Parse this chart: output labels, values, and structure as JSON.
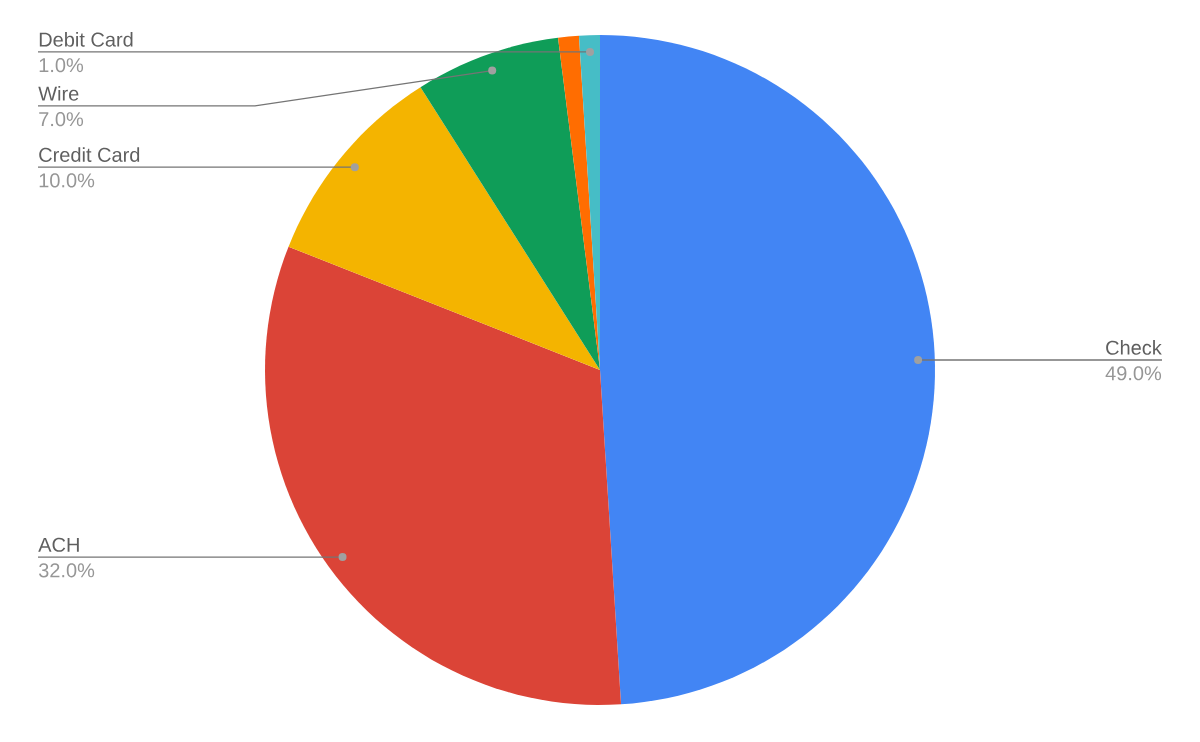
{
  "chart_data": {
    "type": "pie",
    "categories": [
      "Check",
      "ACH",
      "Credit Card",
      "Wire",
      null,
      "Debit Card"
    ],
    "values": [
      49,
      32,
      10,
      7,
      1,
      1
    ],
    "colors": [
      "#4285f4",
      "#db4437",
      "#f4b400",
      "#0f9d58",
      "#ff6d01",
      "#46bdc6"
    ],
    "value_labels": [
      "49.0%",
      "32.0%",
      "10.0%",
      "7.0%",
      null,
      "1.0%"
    ]
  }
}
